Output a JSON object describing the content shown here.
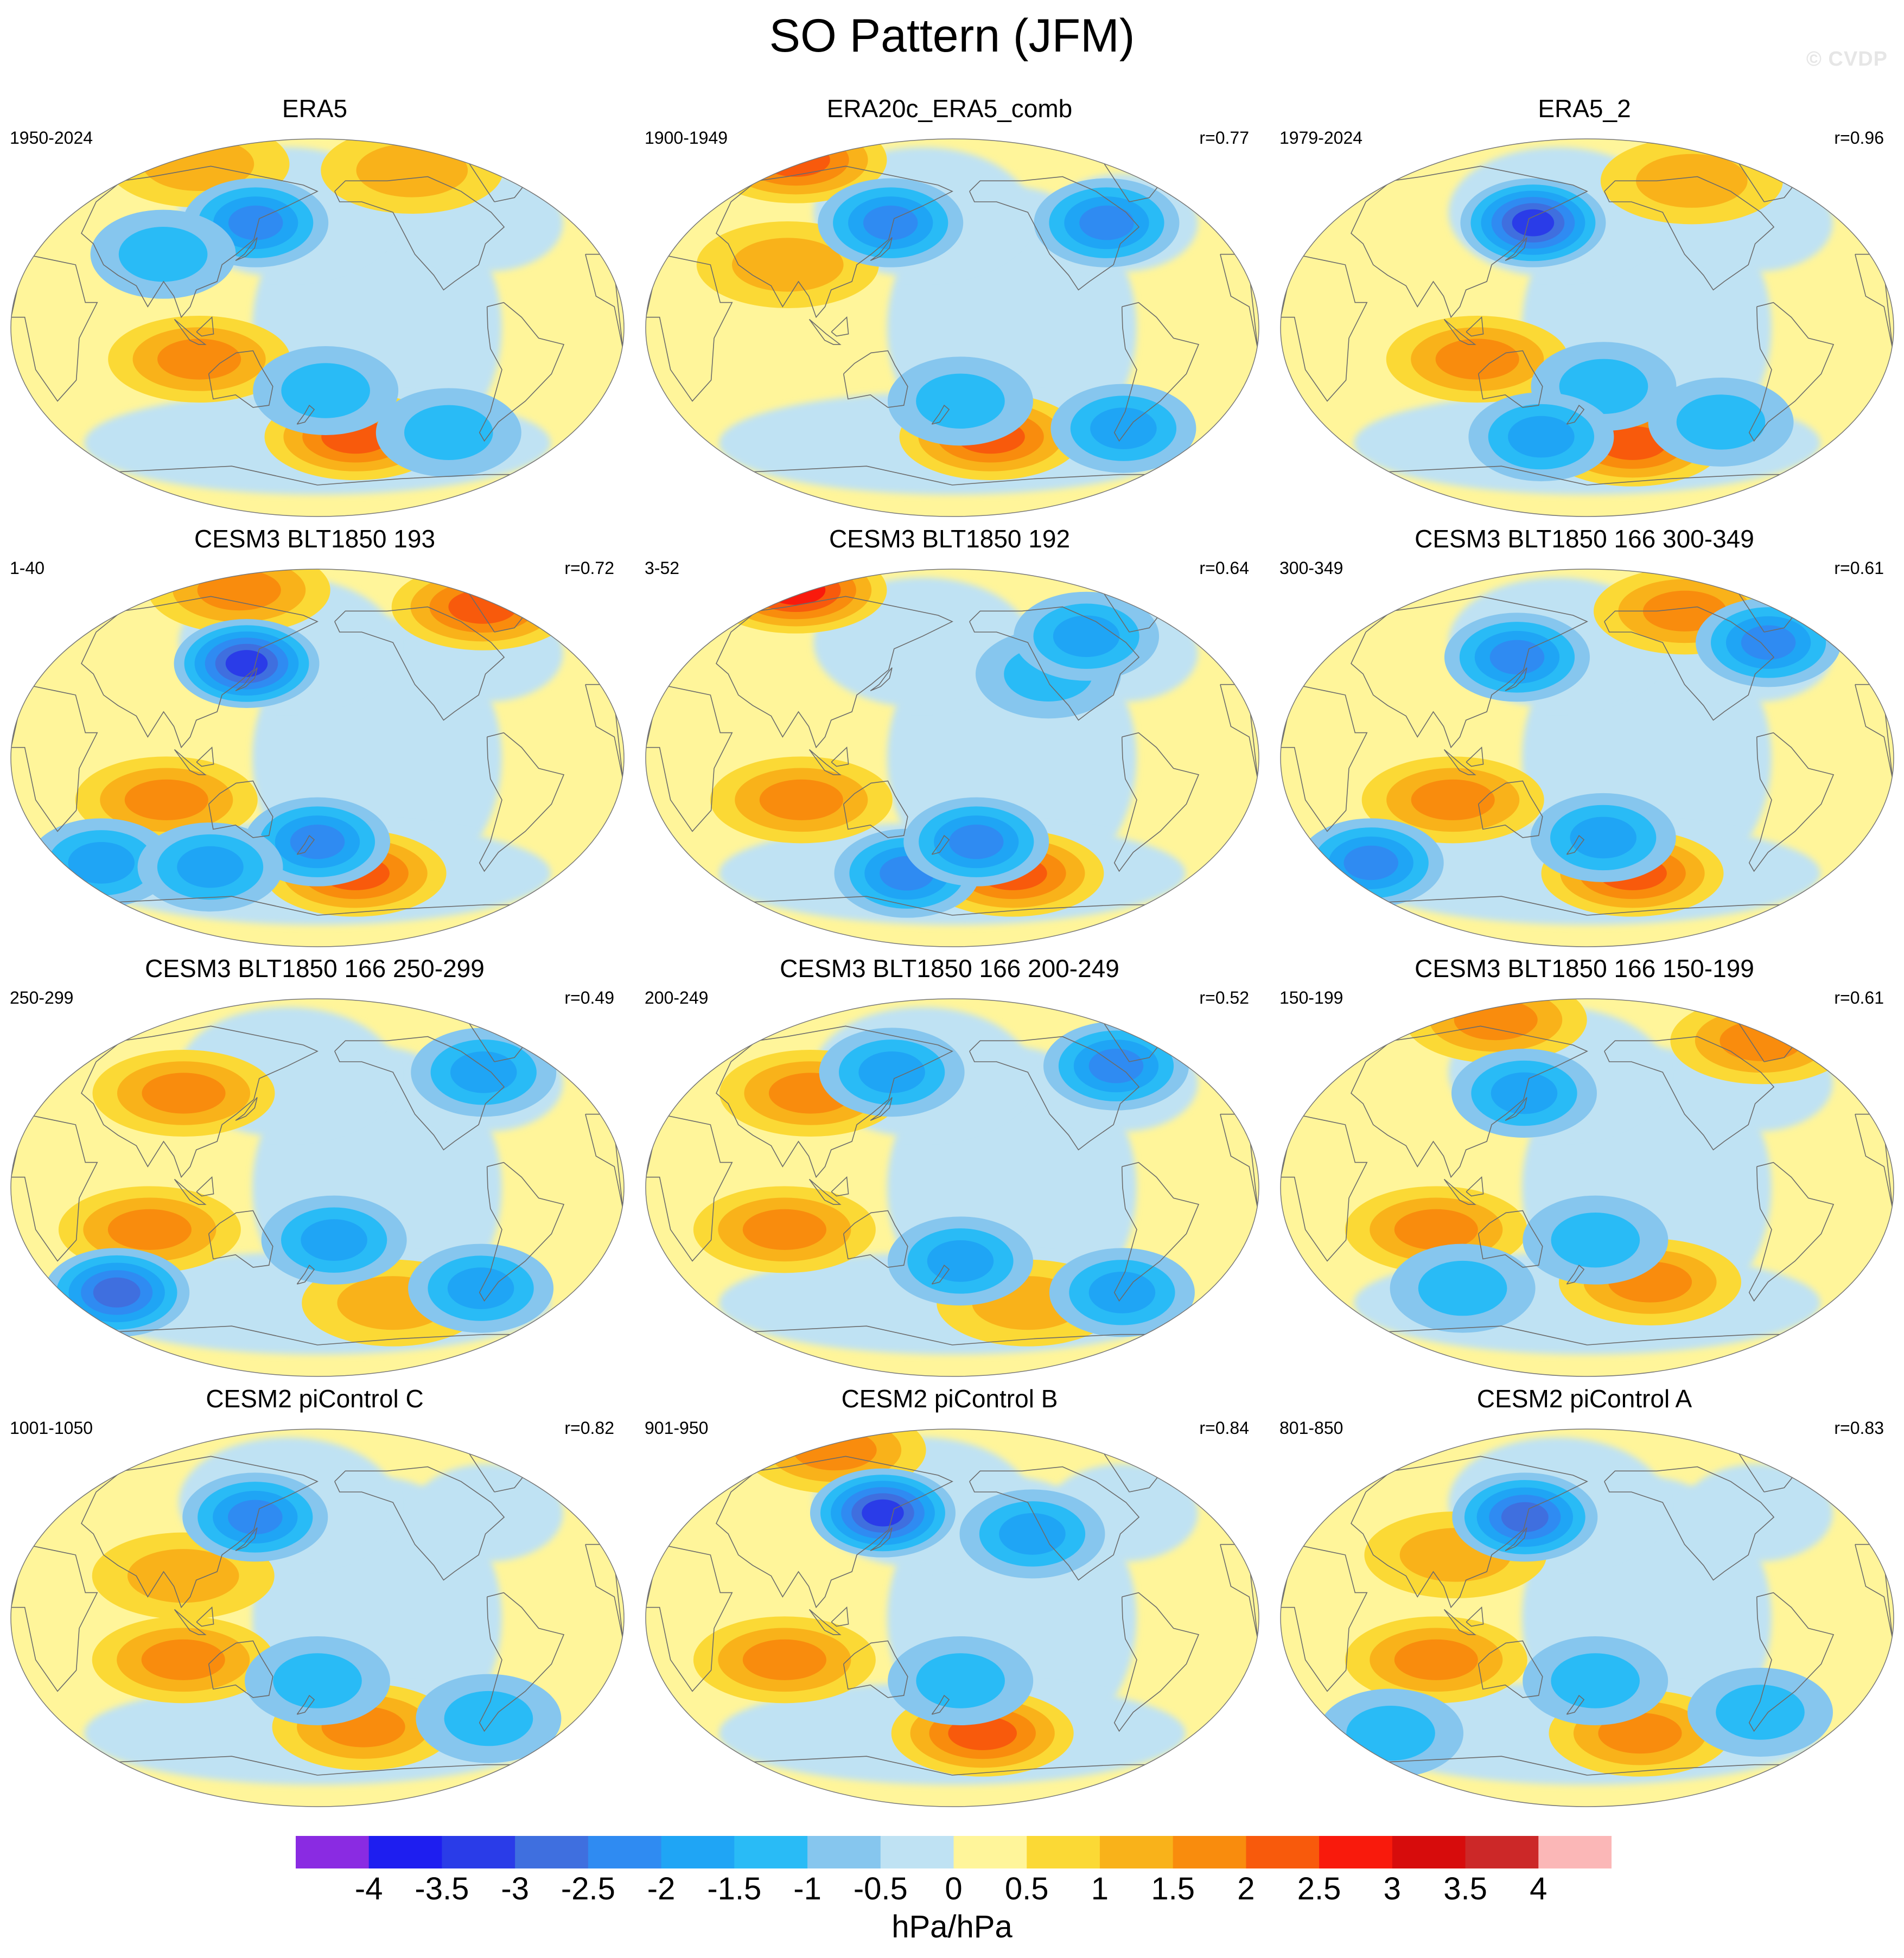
{
  "title": "SO Pattern (JFM)",
  "watermark": "© CVDP",
  "units": "hPa/hPa",
  "colorbar": {
    "labels": [
      "-4",
      "-3.5",
      "-3",
      "-2.5",
      "-2",
      "-1.5",
      "-1",
      "-0.5",
      "0",
      "0.5",
      "1",
      "1.5",
      "2",
      "2.5",
      "3",
      "3.5",
      "4"
    ],
    "colors": [
      "#8a2be2",
      "#1e1ef0",
      "#2a3ce8",
      "#3f6fdf",
      "#2f8bf2",
      "#1fa5f5",
      "#29bbf6",
      "#86c6ee",
      "#bfe2f3",
      "#fff59a",
      "#fbd935",
      "#f9b21a",
      "#f98c0d",
      "#f85a0c",
      "#f91a0c",
      "#d70c0c",
      "#cc2828",
      "#fbb7b7"
    ]
  },
  "panels": [
    {
      "title": "ERA5",
      "years": "1950-2024",
      "r": "",
      "lows": [
        {
          "lon": 140,
          "lat": 50,
          "i": 3
        },
        {
          "lon": 185,
          "lat": -30,
          "i": 1
        },
        {
          "lon": 85,
          "lat": 35,
          "i": 1
        },
        {
          "lon": 265,
          "lat": -50,
          "i": 1
        }
      ],
      "highs": [
        {
          "lon": 110,
          "lat": -15,
          "i": 2
        },
        {
          "lon": 205,
          "lat": -52,
          "i": 3
        },
        {
          "lon": 90,
          "lat": 78,
          "i": 1
        },
        {
          "lon": 250,
          "lat": 75,
          "i": 1
        }
      ]
    },
    {
      "title": "ERA20c_ERA5_comb",
      "years": "1900-1949",
      "r": "r=0.77",
      "lows": [
        {
          "lon": 140,
          "lat": 50,
          "i": 3
        },
        {
          "lon": 280,
          "lat": 50,
          "i": 3
        },
        {
          "lon": 185,
          "lat": -35,
          "i": 1
        },
        {
          "lon": 290,
          "lat": -48,
          "i": 2
        }
      ],
      "highs": [
        {
          "lon": 60,
          "lat": 80,
          "i": 3
        },
        {
          "lon": 205,
          "lat": -52,
          "i": 3
        },
        {
          "lon": 80,
          "lat": 30,
          "i": 1
        }
      ]
    },
    {
      "title": "ERA5_2",
      "years": "1979-2024",
      "r": "r=0.96",
      "lows": [
        {
          "lon": 145,
          "lat": 50,
          "i": 5
        },
        {
          "lon": 190,
          "lat": -28,
          "i": 1
        },
        {
          "lon": 150,
          "lat": -52,
          "i": 2
        },
        {
          "lon": 265,
          "lat": -45,
          "i": 1
        }
      ],
      "highs": [
        {
          "lon": 115,
          "lat": -15,
          "i": 2
        },
        {
          "lon": 210,
          "lat": -55,
          "i": 3
        },
        {
          "lon": 255,
          "lat": 70,
          "i": 1
        }
      ]
    },
    {
      "title": "CESM3 BLT1850 193",
      "years": "1-40",
      "r": "r=0.72",
      "lows": [
        {
          "lon": 135,
          "lat": 45,
          "i": 5
        },
        {
          "lon": 180,
          "lat": -40,
          "i": 3
        },
        {
          "lon": 40,
          "lat": -50,
          "i": 2
        },
        {
          "lon": 110,
          "lat": -52,
          "i": 2
        }
      ],
      "highs": [
        {
          "lon": 300,
          "lat": 72,
          "i": 3
        },
        {
          "lon": 205,
          "lat": -55,
          "i": 3
        },
        {
          "lon": 90,
          "lat": -20,
          "i": 2
        },
        {
          "lon": 120,
          "lat": 80,
          "i": 2
        }
      ]
    },
    {
      "title": "CESM3 BLT1850 192",
      "years": "3-52",
      "r": "r=0.64",
      "lows": [
        {
          "lon": 150,
          "lat": -55,
          "i": 3
        },
        {
          "lon": 195,
          "lat": -40,
          "i": 3
        },
        {
          "lon": 240,
          "lat": 40,
          "i": 1
        },
        {
          "lon": 270,
          "lat": 58,
          "i": 2
        }
      ],
      "highs": [
        {
          "lon": 60,
          "lat": 80,
          "i": 4
        },
        {
          "lon": 220,
          "lat": -55,
          "i": 3
        },
        {
          "lon": 90,
          "lat": -20,
          "i": 2
        }
      ]
    },
    {
      "title": "CESM3 BLT1850 166 300-349",
      "years": "300-349",
      "r": "r=0.61",
      "lows": [
        {
          "lon": 135,
          "lat": 48,
          "i": 3
        },
        {
          "lon": 300,
          "lat": 55,
          "i": 3
        },
        {
          "lon": 40,
          "lat": -50,
          "i": 3
        },
        {
          "lon": 190,
          "lat": -38,
          "i": 2
        }
      ],
      "highs": [
        {
          "lon": 210,
          "lat": -55,
          "i": 3
        },
        {
          "lon": 100,
          "lat": -20,
          "i": 2
        },
        {
          "lon": 250,
          "lat": 70,
          "i": 2
        }
      ]
    },
    {
      "title": "CESM3 BLT1850 166 250-299",
      "years": "250-299",
      "r": "r=0.49",
      "lows": [
        {
          "lon": 50,
          "lat": -50,
          "i": 4
        },
        {
          "lon": 190,
          "lat": -25,
          "i": 2
        },
        {
          "lon": 290,
          "lat": 55,
          "i": 2
        },
        {
          "lon": 285,
          "lat": -48,
          "i": 2
        }
      ],
      "highs": [
        {
          "lon": 80,
          "lat": -20,
          "i": 2
        },
        {
          "lon": 95,
          "lat": 45,
          "i": 2
        },
        {
          "lon": 230,
          "lat": -55,
          "i": 1
        }
      ]
    },
    {
      "title": "CESM3 BLT1850 166 200-249",
      "years": "200-249",
      "r": "r=0.52",
      "lows": [
        {
          "lon": 290,
          "lat": 58,
          "i": 3
        },
        {
          "lon": 140,
          "lat": 55,
          "i": 2
        },
        {
          "lon": 185,
          "lat": -35,
          "i": 2
        },
        {
          "lon": 290,
          "lat": -50,
          "i": 2
        }
      ],
      "highs": [
        {
          "lon": 80,
          "lat": -20,
          "i": 2
        },
        {
          "lon": 90,
          "lat": 45,
          "i": 2
        },
        {
          "lon": 230,
          "lat": -55,
          "i": 1
        }
      ]
    },
    {
      "title": "CESM3 BLT1850 166 150-199",
      "years": "150-199",
      "r": "r=0.61",
      "lows": [
        {
          "lon": 140,
          "lat": 45,
          "i": 2
        },
        {
          "lon": 185,
          "lat": -25,
          "i": 1
        },
        {
          "lon": 100,
          "lat": -48,
          "i": 1
        }
      ],
      "highs": [
        {
          "lon": 110,
          "lat": 80,
          "i": 2
        },
        {
          "lon": 220,
          "lat": -45,
          "i": 2
        },
        {
          "lon": 90,
          "lat": -20,
          "i": 2
        },
        {
          "lon": 305,
          "lat": 70,
          "i": 2
        }
      ]
    },
    {
      "title": "CESM2 piControl C",
      "years": "1001-1050",
      "r": "r=0.82",
      "lows": [
        {
          "lon": 140,
          "lat": 48,
          "i": 3
        },
        {
          "lon": 180,
          "lat": -30,
          "i": 1
        },
        {
          "lon": 290,
          "lat": -48,
          "i": 1
        }
      ],
      "highs": [
        {
          "lon": 100,
          "lat": -20,
          "i": 2
        },
        {
          "lon": 210,
          "lat": -52,
          "i": 2
        },
        {
          "lon": 100,
          "lat": 20,
          "i": 1
        }
      ]
    },
    {
      "title": "CESM2 piControl B",
      "years": "901-950",
      "r": "r=0.84",
      "lows": [
        {
          "lon": 135,
          "lat": 50,
          "i": 5
        },
        {
          "lon": 230,
          "lat": 40,
          "i": 2
        },
        {
          "lon": 185,
          "lat": -30,
          "i": 1
        }
      ],
      "highs": [
        {
          "lon": 90,
          "lat": 80,
          "i": 2
        },
        {
          "lon": 200,
          "lat": -55,
          "i": 3
        },
        {
          "lon": 80,
          "lat": -20,
          "i": 2
        }
      ]
    },
    {
      "title": "CESM2 piControl A",
      "years": "801-850",
      "r": "r=0.83",
      "lows": [
        {
          "lon": 140,
          "lat": 48,
          "i": 4
        },
        {
          "lon": 185,
          "lat": -30,
          "i": 1
        },
        {
          "lon": 290,
          "lat": -45,
          "i": 1
        },
        {
          "lon": 50,
          "lat": -55,
          "i": 1
        }
      ],
      "highs": [
        {
          "lon": 90,
          "lat": -20,
          "i": 2
        },
        {
          "lon": 215,
          "lat": -55,
          "i": 2
        },
        {
          "lon": 100,
          "lat": 30,
          "i": 1
        }
      ]
    }
  ]
}
